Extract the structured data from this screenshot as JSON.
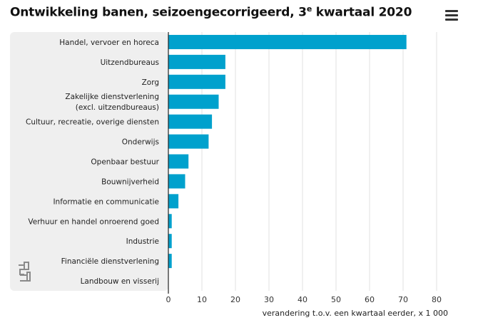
{
  "title_main": "Ontwikkeling banen, seizoengecorrigeerd, 3",
  "title_sup": "e",
  "title_end": " kwartaal 2020",
  "menu_icon": "hamburger-menu-icon",
  "logo_icon": "cbs-logo-icon",
  "colors": {
    "bar": "#00a1cd",
    "panel": "#efefef",
    "grid": "#e2e2e2",
    "axis": "#222222"
  },
  "chart_data": {
    "type": "bar",
    "orientation": "horizontal",
    "categories": [
      [
        "Handel, vervoer en horeca"
      ],
      [
        "Uitzendbureaus"
      ],
      [
        "Zorg"
      ],
      [
        "Zakelijke dienstverlening",
        "(excl. uitzendbureaus)"
      ],
      [
        "Cultuur, recreatie, overige diensten"
      ],
      [
        "Onderwijs"
      ],
      [
        "Openbaar bestuur"
      ],
      [
        "Bouwnijverheid"
      ],
      [
        "Informatie en communicatie"
      ],
      [
        "Verhuur en handel onroerend goed"
      ],
      [
        "Industrie"
      ],
      [
        "Financiële dienstverlening"
      ],
      [
        "Landbouw en visserij"
      ]
    ],
    "values": [
      71,
      17,
      17,
      15,
      13,
      12,
      6,
      5,
      3,
      1,
      1,
      1,
      0
    ],
    "xlabel": "verandering t.o.v. een kwartaal eerder, x 1 000",
    "xlim": [
      0,
      80
    ],
    "xticks": [
      0,
      10,
      20,
      30,
      40,
      50,
      60,
      70,
      80
    ],
    "grid": true
  }
}
